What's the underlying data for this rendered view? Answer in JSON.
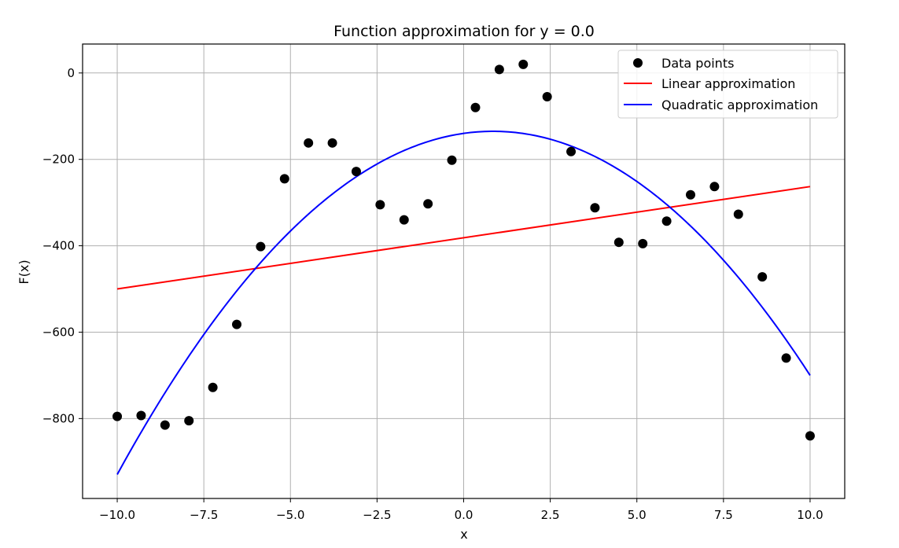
{
  "chart_data": {
    "type": "scatter",
    "title": "Function approximation for y = 0.0",
    "xlabel": "x",
    "ylabel": "F(x)",
    "xlim": [
      -11.0,
      11.0
    ],
    "ylim": [
      -985,
      67
    ],
    "x_ticks": [
      -10.0,
      -7.5,
      -5.0,
      -2.5,
      0.0,
      2.5,
      5.0,
      7.5,
      10.0
    ],
    "x_tick_labels": [
      "−10.0",
      "−7.5",
      "−5.0",
      "−2.5",
      "0.0",
      "2.5",
      "5.0",
      "7.5",
      "10.0"
    ],
    "y_ticks": [
      0,
      -200,
      -400,
      -600,
      -800
    ],
    "y_tick_labels": [
      "0",
      "−200",
      "−400",
      "−600",
      "−800"
    ],
    "grid": true,
    "legend_position": "top-right",
    "legend": [
      "Data points",
      "Linear approximation",
      "Quadratic approximation"
    ],
    "series": [
      {
        "name": "Data points",
        "kind": "scatter",
        "color": "#000000",
        "x": [
          -10.0,
          -9.31,
          -8.62,
          -7.93,
          -7.24,
          -6.55,
          -5.86,
          -5.17,
          -4.48,
          -3.79,
          -3.1,
          -2.41,
          -1.72,
          -1.03,
          -0.34,
          0.34,
          1.03,
          1.72,
          2.41,
          3.1,
          3.79,
          4.48,
          5.17,
          5.86,
          6.55,
          7.24,
          7.93,
          8.62,
          9.31,
          10.0
        ],
        "y": [
          -795,
          -793,
          -815,
          -805,
          -728,
          -582,
          -402,
          -245,
          -162,
          -162,
          -228,
          -305,
          -340,
          -303,
          -202,
          -80,
          8,
          20,
          -55,
          -182,
          -312,
          -392,
          -395,
          -343,
          -282,
          -263,
          -327,
          -472,
          -660,
          -840
        ]
      },
      {
        "name": "Linear approximation",
        "kind": "line",
        "color": "#ff0000",
        "x": [
          -10.0,
          10.0
        ],
        "y": [
          -500,
          -263
        ]
      },
      {
        "name": "Quadratic approximation",
        "kind": "curve",
        "color": "#0000ff",
        "x_range": [
          -10.0,
          10.0
        ],
        "vertex_x": 0.85,
        "vertex_y": -135,
        "end_y": -700
      }
    ]
  }
}
